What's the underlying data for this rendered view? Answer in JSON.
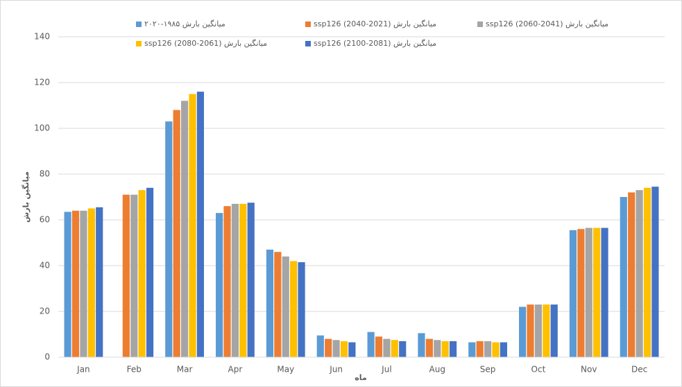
{
  "chart_data": {
    "type": "bar",
    "x_label": "ماه",
    "y_label": "میانگین بارش",
    "categories": [
      "Jan",
      "Feb",
      "Mar",
      "Apr",
      "May",
      "Jun",
      "Jul",
      "Aug",
      "Sep",
      "Oct",
      "Nov",
      "Dec"
    ],
    "series": [
      {
        "name": "میانگین بارش ۱۹۸۵-۲۰۲۰",
        "color": "#5b9bd5",
        "values": [
          63.5,
          null,
          103,
          63,
          47,
          9.5,
          11,
          10.5,
          6.5,
          22,
          55.5,
          70
        ]
      },
      {
        "name": "میانگین بارش (2021-2040) ssp126",
        "color": "#ed7d31",
        "values": [
          64,
          71,
          108,
          66,
          46,
          8,
          9,
          8,
          7,
          23,
          56,
          72
        ]
      },
      {
        "name": "میانگین بارش (2041-2060) ssp126",
        "color": "#a5a5a5",
        "values": [
          64,
          71,
          112,
          67,
          44,
          7.5,
          8,
          7.5,
          7,
          23,
          56.5,
          73
        ]
      },
      {
        "name": "میانگین بارش (2061-2080) ssp126",
        "color": "#ffc000",
        "values": [
          65,
          73,
          115,
          67,
          42,
          7,
          7.5,
          7,
          6.5,
          23,
          56.5,
          74
        ]
      },
      {
        "name": "میانگین بارش (2081-2100) ssp126",
        "color": "#4472c4",
        "values": [
          65.5,
          74,
          116,
          67.5,
          41.5,
          6.5,
          7,
          7,
          6.5,
          23,
          56.5,
          74.5
        ]
      }
    ],
    "ylim": [
      0,
      140
    ],
    "yticks": [
      0,
      20,
      40,
      60,
      80,
      100,
      120,
      140
    ],
    "grid": true
  }
}
